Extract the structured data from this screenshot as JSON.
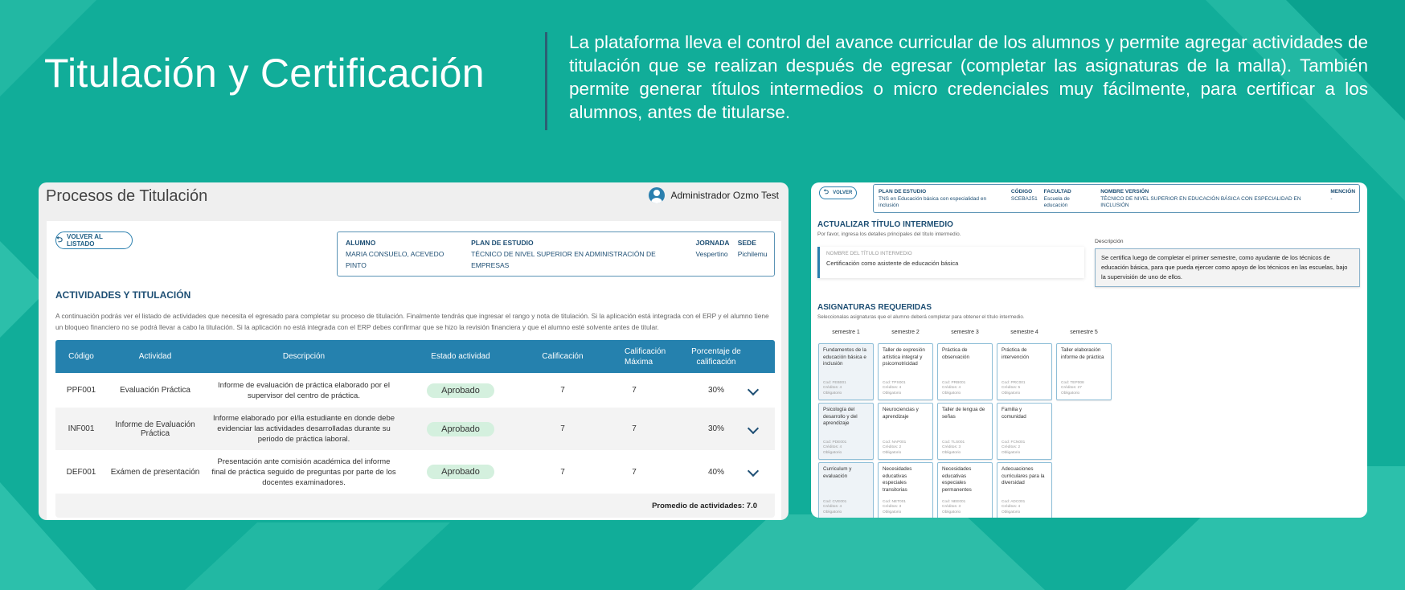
{
  "colors": {
    "background": "#11ad99",
    "accent": "#2581ae",
    "heading": "#1e4f74",
    "approved_badge": "#d4f0de"
  },
  "hero": {
    "title": "Titulación y Certificación",
    "text": "La plataforma lleva el control del avance curricular de los alumnos y permite agregar actividades de titulación que se realizan después de egresar (completar las asignaturas de la malla). También permite generar títulos intermedios o micro credenciales muy fácilmente, para certificar a los alumnos, antes de titularse."
  },
  "left": {
    "title": "Procesos de Titulación",
    "user": "Administrador Ozmo Test",
    "back_label": "VOLVER AL LISTADO",
    "info": [
      {
        "k": "ALUMNO",
        "v": "MARIA CONSUELO, ACEVEDO PINTO"
      },
      {
        "k": "PLAN DE ESTUDIO",
        "v": "TÉCNICO DE NIVEL SUPERIOR EN ADMINISTRACIÓN DE EMPRESAS"
      },
      {
        "k": "JORNADA",
        "v": "Vespertino"
      },
      {
        "k": "SEDE",
        "v": "Pichilemu"
      }
    ],
    "section_title": "ACTIVIDADES Y TITULACIÓN",
    "section_text": "A continuación podrás ver el listado de actividades que necesita el egresado para completar su proceso de titulación. Finalmente tendrás que ingresar el rango y nota de titulación. Si la aplicación está integrada con el ERP y el alumno tiene un bloqueo financiero no se podrá llevar a cabo la titulación. Si la aplicación no está integrada con el ERP debes confirmar que se hizo la revisión financiera y que el alumno esté solvente antes de titular.",
    "columns": [
      "Código",
      "Actividad",
      "Descripción",
      "Estado actividad",
      "Calificación",
      "Calificación Máxima",
      "Porcentaje de calificación"
    ],
    "rows": [
      {
        "code": "PPF001",
        "activity": "Evaluación Práctica",
        "description": "Informe de evaluación de práctica elaborado por el supervisor del centro de práctica.",
        "status": "Aprobado",
        "grade": "7",
        "max": "7",
        "pct": "30%"
      },
      {
        "code": "INF001",
        "activity": "Informe de Evaluación Práctica",
        "description": "Informe elaborado por el/la estudiante en donde debe evidenciar las actividades desarrolladas durante su periodo de práctica laboral.",
        "status": "Aprobado",
        "grade": "7",
        "max": "7",
        "pct": "30%"
      },
      {
        "code": "DEF001",
        "activity": "Exámen de presentación",
        "description": "Presentación ante comisión académica del informe final de práctica seguido de preguntas por parte de los docentes examinadores.",
        "status": "Aprobado",
        "grade": "7",
        "max": "7",
        "pct": "40%"
      }
    ],
    "average": "Promedio de actividades: 7.0"
  },
  "right": {
    "back_label": "VOLVER",
    "info": [
      {
        "k": "PLAN DE ESTUDIO",
        "v": "TNS en Educación básica con especialidad en inclusión"
      },
      {
        "k": "CÓDIGO",
        "v": "SCEBA251"
      },
      {
        "k": "FACULTAD",
        "v": "Escuela de educación"
      },
      {
        "k": "NOMBRE VERSIÓN",
        "v": "TÉCNICO DE NIVEL SUPERIOR EN EDUCACIÓN BÁSICA CON ESPECIALIDAD EN INCLUSIÓN"
      },
      {
        "k": "MENCIÓN",
        "v": "-"
      }
    ],
    "section_title": "ACTUALIZAR TÍTULO INTERMEDIO",
    "section_text": "Por favor, ingresa los detalles principales del título intermedio.",
    "name_label": "NOMBRE DEL TÍTULO INTERMEDIO",
    "name_value": "Certificación como asistente  de educación básica",
    "desc_label": "Descripción",
    "desc_value": "Se certifica luego de completar el primer semestre, como ayudante de los técnicos de educación básica, para que pueda ejercer como apoyo de los técnicos en las escuelas, bajo la supervisión de uno de ellos.",
    "subjects_title": "ASIGNATURAS REQUERIDAS",
    "subjects_text": "Seleccionalas asignaturas que el alumno deberá completar para obtener el título intermedio.",
    "semesters": [
      "semestre 1",
      "semestre 2",
      "semestre 3",
      "semestre 4",
      "semestre 5"
    ],
    "subjects": [
      [
        {
          "name": "Fundamentos de la educación básica e inclusión",
          "cod": "Cod: FEB001",
          "cred": "Créditos: 4",
          "type": "Obligatorio",
          "selected": true
        },
        {
          "name": "Psicología del desarrollo y del aprendizaje",
          "cod": "Cod: PDE001",
          "cred": "Créditos: 4",
          "type": "Obligatorio",
          "selected": true
        },
        {
          "name": "Curriculum y evaluación",
          "cod": "Cod: CVE001",
          "cred": "Créditos: 4",
          "type": "Obligatorio",
          "selected": true
        }
      ],
      [
        {
          "name": "Taller de expresión artística integral y psicomotricidad",
          "cod": "Cod: TPS001",
          "cred": "Créditos: 4",
          "type": "Obligatorio"
        },
        {
          "name": "Neurociencias y aprendizaje",
          "cod": "Cod: NAP001",
          "cred": "Créditos: 2",
          "type": "Obligatorio"
        },
        {
          "name": "Necesidades educativas especiales transitorias",
          "cod": "Cod: NET001",
          "cred": "Créditos: 3",
          "type": "Obligatorio"
        }
      ],
      [
        {
          "name": "Práctica de observación",
          "cod": "Cod: PRB001",
          "cred": "Créditos: 4",
          "type": "Obligatorio"
        },
        {
          "name": "Taller de lengua de señas",
          "cod": "Cod: TLS001",
          "cred": "Créditos: 3",
          "type": "Obligatorio"
        },
        {
          "name": "Necesidades educativas especiales permanentes",
          "cod": "Cod: NEE001",
          "cred": "Créditos: 3",
          "type": "Obligatorio"
        }
      ],
      [
        {
          "name": "Práctica de intervención",
          "cod": "Cod: PRC001",
          "cred": "Créditos: 5",
          "type": "Obligatorio"
        },
        {
          "name": "Familia y comunidad",
          "cod": "Cod: FCN001",
          "cred": "Créditos: 2",
          "type": "Obligatorio"
        },
        {
          "name": "Adecuaciones curriculares para la diversidad",
          "cod": "Cod: ADC001",
          "cred": "Créditos: 4",
          "type": "Obligatorio"
        }
      ],
      [
        {
          "name": "Taller elaboración informe de práctica",
          "cod": "Cod: TEP008",
          "cred": "Créditos: 27",
          "type": "Obligatorio"
        }
      ]
    ]
  }
}
